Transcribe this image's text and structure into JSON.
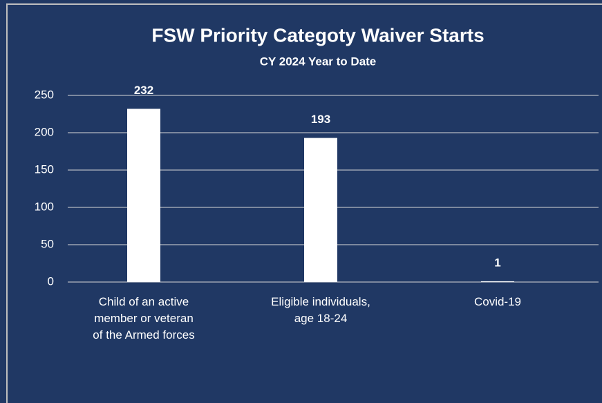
{
  "chart_data": {
    "type": "bar",
    "title": "FSW Priority Categoty Waiver Starts",
    "subtitle": "CY 2024 Year to Date",
    "categories": [
      "Child of an active member or veteran of the Armed forces",
      "Eligible individuals, age 18-24",
      "Covid-19"
    ],
    "values": [
      232,
      193,
      1
    ],
    "color": "#ffffff",
    "ylim": [
      0,
      250
    ],
    "yticks": [
      0,
      50,
      100,
      150,
      200,
      250
    ],
    "grid": true
  }
}
